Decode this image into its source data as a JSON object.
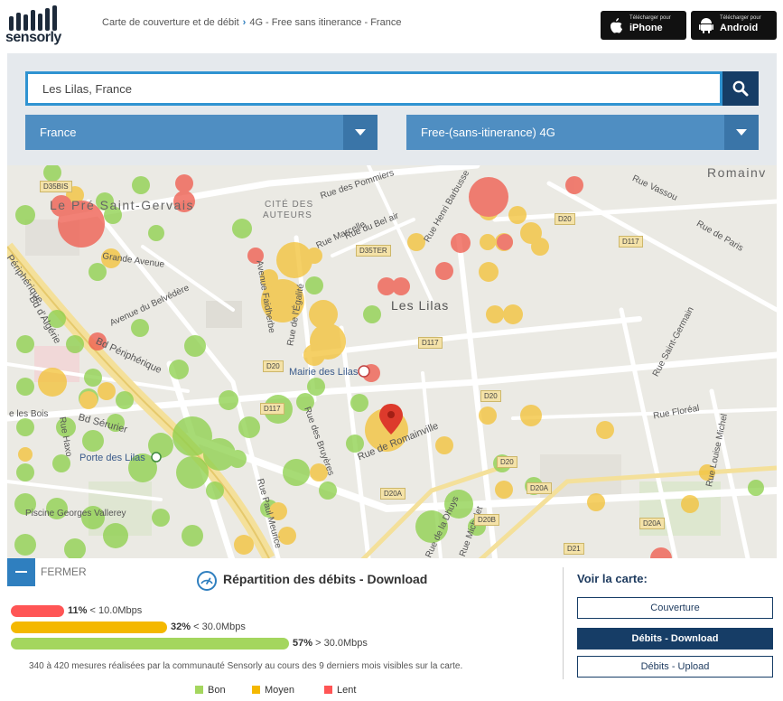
{
  "header": {
    "logo_text": "sensorly",
    "breadcrumb": {
      "parent": "Carte de couverture et de débit",
      "separator": "›",
      "current": "4G - Free sans itinerance - France"
    },
    "store_iphone": {
      "small": "Télécharger pour",
      "big": "iPhone"
    },
    "store_android": {
      "small": "Télécharger pour",
      "big": "Android"
    }
  },
  "search": {
    "value": "Les Lilas, France",
    "country_select": "France",
    "network_select": "Free-(sans-itinerance) 4G"
  },
  "map": {
    "labels": {
      "le_pre": "Le Pré Saint-Gervais",
      "les_lilas": "Les Lilas",
      "romainville": "Romainv",
      "cite": "CITÉ DES",
      "auteurs": "AUTEURS",
      "r_pommiers": "Rue des Pommiers",
      "r_belair": "Rue du Bel air",
      "r_marcelle": "Rue Marcelle",
      "r_barbusse": "Rue Henri Barbusse",
      "r_vassou": "Rue Vassou",
      "r_paris": "Rue de Paris",
      "grande_avenue": "Grande Avenue",
      "avenue_belvedere": "Avenue du Belvédère",
      "avenue_faidherbe": "Avenue Faidherbe",
      "r_egalite": "Rue de l'Égalité",
      "bd_peripherique": "Bd Périphérique",
      "peripherique_left": "Périphérique",
      "bd_algerie": "Bd d'Algérie",
      "mairie": "Mairie des Lilas",
      "r_bruyeres": "Rue des Bruyères",
      "r_romainville": "Rue de Romainville",
      "r_floreal": "Rue Floréal",
      "r_st_germain": "Rue Saint-Germain",
      "r_louise_michel": "Rue Louise Michel",
      "r_bois": "e les Bois",
      "r_haxo": "Rue Haxo",
      "bd_serurier": "Bd Sérurier",
      "porte_lilas": "Porte des Lilas",
      "piscine": "Piscine Georges Vallerey",
      "r_paul_meurice": "Rue Paul Meurice",
      "r_dhuys": "Rue de la Dhuys",
      "r_michelet": "Rue Michelet"
    },
    "road_badges": [
      "D35BIS",
      "D35TER",
      "D20",
      "D117",
      "D117",
      "D20",
      "D117",
      "D20",
      "D20",
      "D20A",
      "D20A",
      "D20B",
      "D20A",
      "D21"
    ],
    "signal_colors": {
      "bon": "#8fd14f",
      "moyen": "#f3c33c",
      "lent": "#ef5e50"
    }
  },
  "panel": {
    "fermer": "FERMER",
    "title": "Répartition des débits - Download",
    "bars": [
      {
        "pct": 11,
        "pct_label": "11%",
        "desc": "< 10.0Mbps",
        "color": "#ff5555"
      },
      {
        "pct": 32,
        "pct_label": "32%",
        "desc": "< 30.0Mbps",
        "color": "#f4b800"
      },
      {
        "pct": 57,
        "pct_label": "57%",
        "desc": "> 30.0Mbps",
        "color": "#a4d65e"
      }
    ],
    "mesures": "340 à 420 mesures réalisées par la communauté Sensorly au cours des 9 derniers mois visibles sur la carte.",
    "legend": [
      {
        "label": "Bon",
        "color": "#a4d65e"
      },
      {
        "label": "Moyen",
        "color": "#f4b800"
      },
      {
        "label": "Lent",
        "color": "#ff5555"
      }
    ],
    "voir_title": "Voir la carte:",
    "voir_buttons": [
      "Couverture",
      "Débits - Download",
      "Débits - Upload"
    ]
  }
}
